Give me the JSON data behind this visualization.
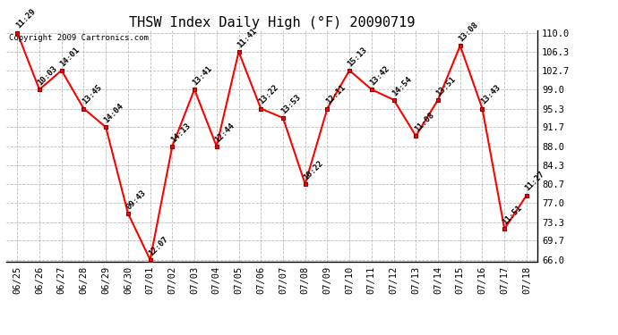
{
  "title": "THSW Index Daily High (°F) 20090719",
  "copyright": "Copyright 2009 Cartronics.com",
  "dates": [
    "06/25",
    "06/26",
    "06/27",
    "06/28",
    "06/29",
    "06/30",
    "07/01",
    "07/02",
    "07/03",
    "07/04",
    "07/05",
    "07/06",
    "07/07",
    "07/08",
    "07/09",
    "07/10",
    "07/11",
    "07/12",
    "07/13",
    "07/14",
    "07/15",
    "07/16",
    "07/17",
    "07/18"
  ],
  "values": [
    110.0,
    99.0,
    102.7,
    95.3,
    91.7,
    75.0,
    66.0,
    88.0,
    99.0,
    88.0,
    106.3,
    95.3,
    93.5,
    80.7,
    95.3,
    102.7,
    99.0,
    97.0,
    90.0,
    97.0,
    107.5,
    95.3,
    72.0,
    78.5
  ],
  "times": [
    "11:29",
    "10:03",
    "14:01",
    "13:45",
    "14:04",
    "09:43",
    "12:07",
    "14:13",
    "13:41",
    "12:44",
    "11:41",
    "13:22",
    "13:53",
    "10:22",
    "12:11",
    "15:13",
    "13:42",
    "14:54",
    "11:08",
    "13:51",
    "13:08",
    "13:43",
    "11:51",
    "11:27"
  ],
  "ymin": 66.0,
  "ymax": 110.0,
  "yticks": [
    66.0,
    69.7,
    73.3,
    77.0,
    80.7,
    84.3,
    88.0,
    91.7,
    95.3,
    99.0,
    102.7,
    106.3,
    110.0
  ],
  "line_color": "#FF0000",
  "marker_color": "#FF0000",
  "bg_color": "#FFFFFF",
  "grid_color": "#BBBBBB",
  "title_fontsize": 11,
  "label_fontsize": 6.5,
  "tick_fontsize": 7.5,
  "copyright_fontsize": 6.5
}
